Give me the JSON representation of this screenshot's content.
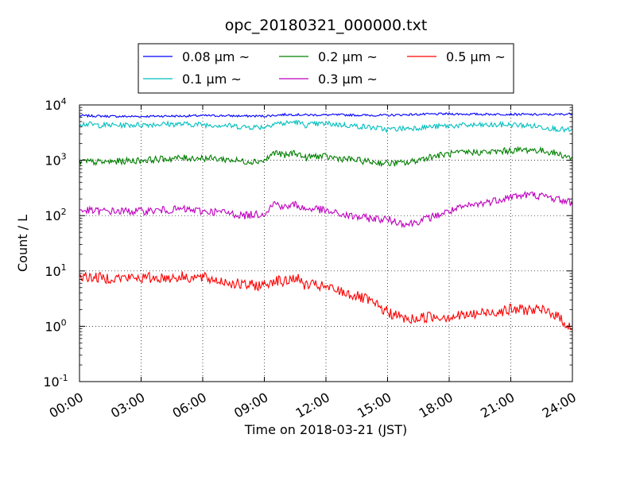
{
  "chart_data": {
    "type": "line",
    "title": "opc_20180321_000000.txt",
    "xlabel": "Time on 2018-03-21 (JST)",
    "ylabel": "Count / L",
    "y_scale": "log",
    "ylim": [
      0.1,
      10000
    ],
    "xlim": [
      "2018-03-21 00:00",
      "2018-03-22 00:00"
    ],
    "grid": true,
    "legend_position": "top",
    "x_tick_labels": [
      "00:00",
      "03:00",
      "06:00",
      "09:00",
      "12:00",
      "15:00",
      "18:00",
      "21:00",
      "24:00"
    ],
    "y_tick_labels": [
      {
        "base": "10",
        "exp": "-1"
      },
      {
        "base": "10",
        "exp": "0"
      },
      {
        "base": "10",
        "exp": "1"
      },
      {
        "base": "10",
        "exp": "2"
      },
      {
        "base": "10",
        "exp": "3"
      },
      {
        "base": "10",
        "exp": "4"
      }
    ],
    "x_hours": [
      0,
      1,
      2,
      3,
      4,
      5,
      6,
      7,
      8,
      9,
      9.5,
      10,
      10.5,
      11,
      11.5,
      12,
      13,
      14,
      15,
      16,
      17,
      18,
      19,
      20,
      21,
      22,
      23,
      24
    ],
    "series": [
      {
        "name": "0.08 µm ~",
        "color": "#0000ff",
        "values": [
          6400,
          6300,
          6200,
          6200,
          6300,
          6300,
          6400,
          6400,
          6300,
          6300,
          6500,
          6700,
          6700,
          6600,
          6600,
          6600,
          6600,
          6500,
          6500,
          6700,
          6800,
          6900,
          6800,
          6800,
          6800,
          6700,
          6700,
          6900
        ]
      },
      {
        "name": "0.1 µm ~",
        "color": "#00bfbf",
        "values": [
          4600,
          4300,
          4300,
          4400,
          4500,
          4500,
          4400,
          4300,
          4000,
          4000,
          4700,
          4600,
          5000,
          4300,
          4500,
          4600,
          4300,
          4000,
          3600,
          3800,
          4000,
          4200,
          4300,
          4300,
          4400,
          4200,
          3800,
          3400
        ]
      },
      {
        "name": "0.2 µm ~",
        "color": "#008000",
        "values": [
          950,
          920,
          960,
          1000,
          1050,
          1100,
          1100,
          1050,
          950,
          980,
          1400,
          1200,
          1400,
          1100,
          1200,
          1150,
          1050,
          950,
          880,
          900,
          1150,
          1300,
          1400,
          1400,
          1500,
          1550,
          1400,
          1100
        ]
      },
      {
        "name": "0.3 µm ~",
        "color": "#bf00bf",
        "values": [
          125,
          120,
          120,
          120,
          125,
          130,
          120,
          115,
          100,
          110,
          170,
          140,
          160,
          130,
          135,
          120,
          100,
          90,
          85,
          70,
          90,
          120,
          150,
          180,
          220,
          240,
          210,
          170
        ]
      },
      {
        "name": "0.5 µm ~",
        "color": "#ff0000",
        "values": [
          8,
          7.5,
          7.5,
          7.5,
          7.5,
          7.8,
          7.5,
          6.5,
          5.5,
          5.5,
          7,
          6.2,
          7.8,
          5.5,
          5.5,
          5,
          4,
          3,
          1.8,
          1.3,
          1.5,
          1.5,
          1.6,
          1.8,
          2,
          2,
          1.8,
          0.9
        ]
      }
    ]
  }
}
